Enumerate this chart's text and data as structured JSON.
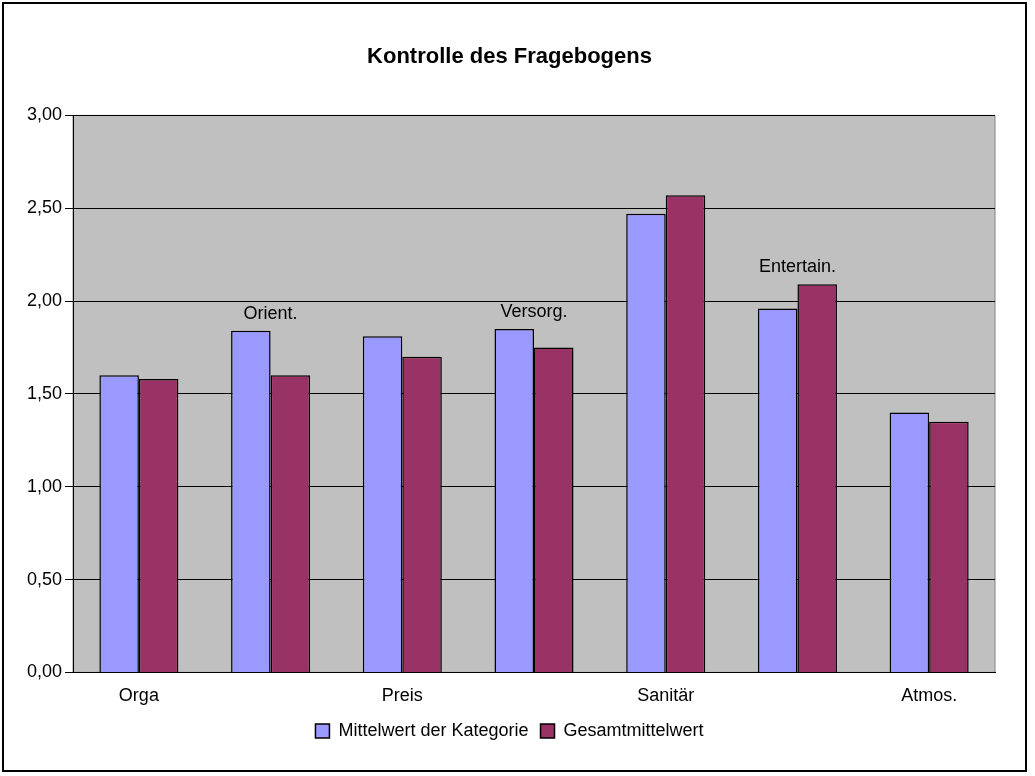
{
  "chart_data": {
    "type": "bar",
    "title": "Kontrolle des Fragebogens",
    "categories": [
      "Orga",
      "Orient.",
      "Preis",
      "Versorg.",
      "Sanitär",
      "Entertain.",
      "Atmos."
    ],
    "series": [
      {
        "name": "Mittelwert der Kategorie",
        "color": "#9999ff",
        "values": [
          1.6,
          1.84,
          1.81,
          1.85,
          2.47,
          1.96,
          1.4
        ]
      },
      {
        "name": "Gesamtmittelwert",
        "color": "#993366",
        "values": [
          1.58,
          1.6,
          1.7,
          1.75,
          2.57,
          2.09,
          1.35
        ]
      }
    ],
    "ylim": [
      0,
      3
    ],
    "yticks": [
      {
        "value": 0,
        "label": "0,00"
      },
      {
        "value": 0.5,
        "label": "0,50"
      },
      {
        "value": 1,
        "label": "1,00"
      },
      {
        "value": 1.5,
        "label": "1,50"
      },
      {
        "value": 2,
        "label": "2,00"
      },
      {
        "value": 2.5,
        "label": "2,50"
      },
      {
        "value": 3,
        "label": "3,00"
      }
    ],
    "grid": "y",
    "legend": "bottom"
  }
}
